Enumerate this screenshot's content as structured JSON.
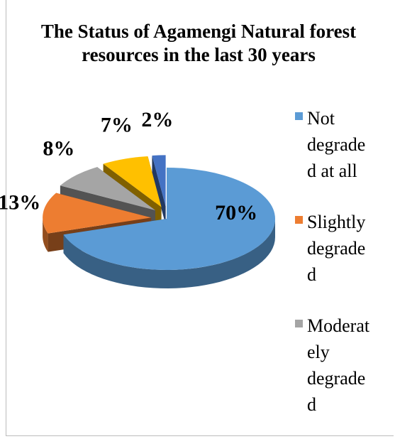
{
  "chart_data": {
    "type": "pie3d",
    "title": "The Status of Agamengi Natural forest resources in the last 30 years",
    "categories": [
      "Not degraded at all",
      "Slightly degraded",
      "Moderately degraded",
      null,
      null
    ],
    "values": [
      70,
      13,
      8,
      7,
      2
    ],
    "value_labels": [
      "70%",
      "13%",
      "8%",
      "7%",
      "2%"
    ],
    "colors": [
      "#5b9bd5",
      "#ed7d31",
      "#a5a5a5",
      "#ffc000",
      "#4472c4"
    ],
    "legend": "right"
  }
}
